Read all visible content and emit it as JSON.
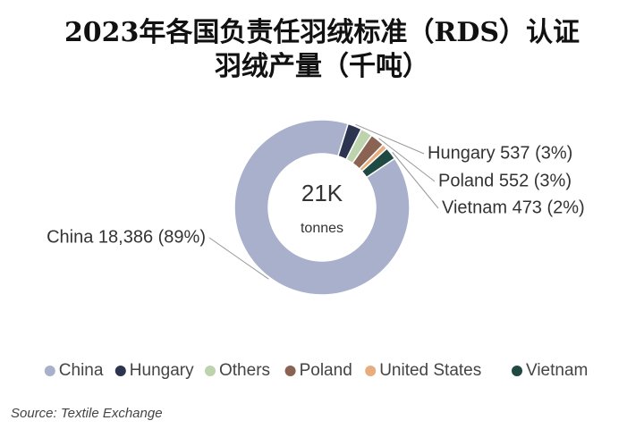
{
  "chart_data": {
    "type": "donut",
    "title_lines": [
      "2023年各国负责任羽绒标准（RDS）认证",
      "羽绒产量（千吨）"
    ],
    "categories": [
      "China",
      "Hungary",
      "Others",
      "Poland",
      "United States",
      "Vietnam"
    ],
    "values": [
      18386,
      537,
      450,
      552,
      200,
      473
    ],
    "value_labels": [
      "China 18,386 (89%)",
      "Hungary 537 (3%)",
      null,
      "Poland 552 (3%)",
      null,
      "Vietnam 473 (2%)"
    ],
    "colors": [
      "#a9b0cc",
      "#2d3450",
      "#bcd3ad",
      "#8a6352",
      "#e8ad7f",
      "#1f4a44"
    ],
    "center_value": "21K",
    "center_unit": "tonnes",
    "legend": "bottom",
    "source": "Source: Textile Exchange"
  }
}
